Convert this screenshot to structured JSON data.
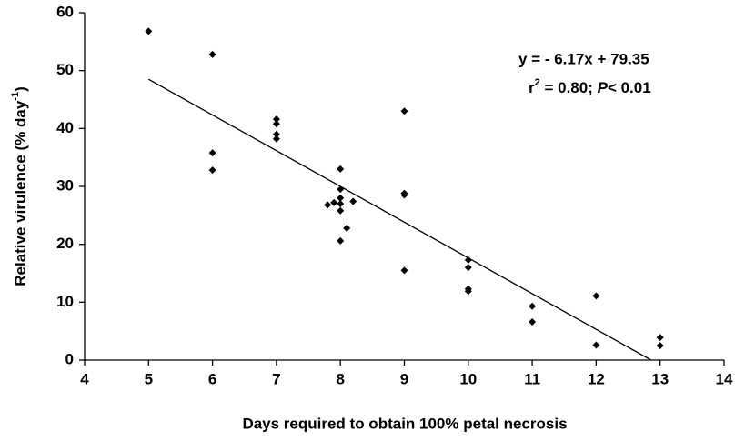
{
  "chart_data": {
    "type": "scatter",
    "x_label": "Days required to obtain 100% petal necrosis",
    "y_label": [
      "Relative virulence (% day",
      "-1",
      ")"
    ],
    "annotation": {
      "equation": "y = - 6.17x + 79.35",
      "stats": [
        "r",
        "2",
        " = 0.80; ",
        "P",
        "< 0.01"
      ]
    },
    "x": [
      5,
      6,
      6,
      6,
      7,
      7,
      7,
      7,
      7.8,
      7.9,
      8,
      8,
      8,
      8,
      8,
      8,
      8.1,
      8.2,
      9,
      9,
      9,
      9,
      10,
      10,
      10,
      10,
      11,
      11,
      12,
      12,
      13,
      13
    ],
    "values": [
      56.8,
      52.8,
      35.8,
      32.8,
      41.6,
      40.8,
      39,
      38.2,
      26.8,
      27.2,
      33,
      29.5,
      28,
      27,
      25.8,
      20.6,
      22.8,
      27.4,
      43,
      28.8,
      28.5,
      15.5,
      17.3,
      16,
      12.3,
      11.9,
      9.3,
      6.6,
      11.1,
      2.6,
      3.9,
      2.5
    ],
    "color": "#000000",
    "trendline": {
      "slope": -6.17,
      "intercept": 79.35
    },
    "xlim": [
      4,
      14
    ],
    "xticks": [
      4,
      5,
      6,
      7,
      8,
      9,
      10,
      11,
      12,
      13,
      14
    ],
    "ylim": [
      0,
      60
    ],
    "yticks": [
      0,
      10,
      20,
      30,
      40,
      50,
      60
    ],
    "grid": false
  }
}
